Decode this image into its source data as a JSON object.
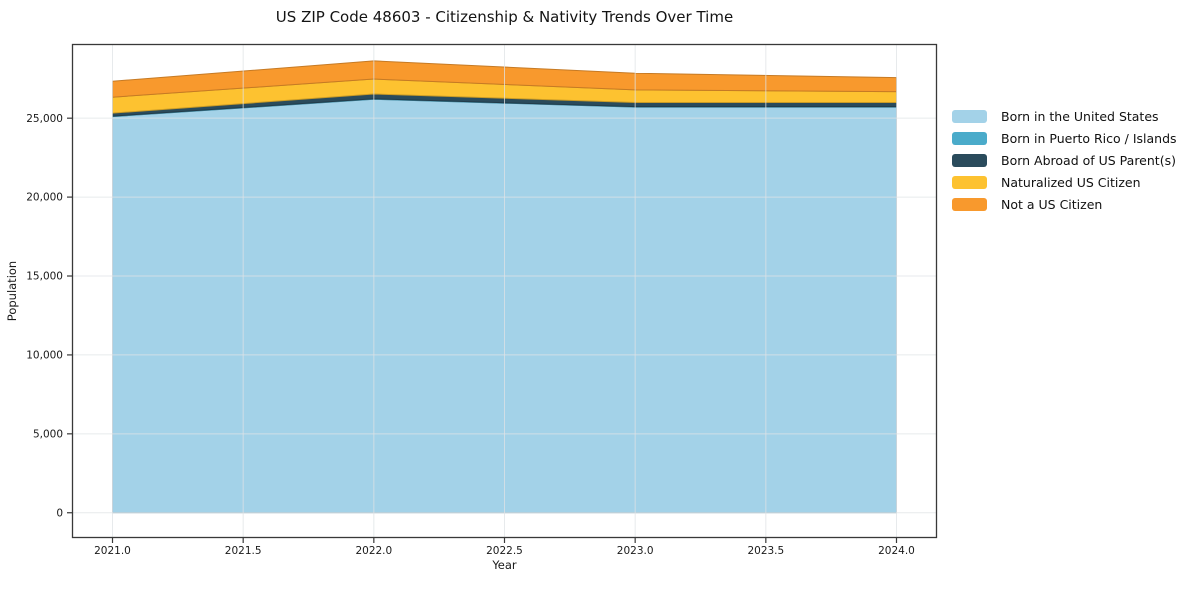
{
  "title": "US ZIP Code 48603 - Citizenship & Nativity Trends Over Time",
  "chart_data": {
    "type": "area",
    "stacked": true,
    "title": "US ZIP Code 48603 - Citizenship & Nativity Trends Over Time",
    "xlabel": "Year",
    "ylabel": "Population",
    "x": [
      2021,
      2022,
      2023,
      2024
    ],
    "xlim": [
      2020.845,
      2024.155
    ],
    "ylim": [
      -1600,
      29700
    ],
    "xticks": [
      2021.0,
      2021.5,
      2022.0,
      2022.5,
      2023.0,
      2023.5,
      2024.0
    ],
    "xticklabels": [
      "2021.0",
      "2021.5",
      "2022.0",
      "2022.5",
      "2023.0",
      "2023.5",
      "2024.0"
    ],
    "yticks": [
      0,
      5000,
      10000,
      15000,
      20000,
      25000
    ],
    "yticklabels": [
      "0",
      "5,000",
      "10,000",
      "15,000",
      "20,000",
      "25,000"
    ],
    "grid": true,
    "legend_position": "center-right-outside",
    "series": [
      {
        "name": "Born in the United States",
        "color": "#a3d2e8",
        "values": [
          25100,
          26200,
          25700,
          25700
        ]
      },
      {
        "name": "Born in Puerto Rico / Islands",
        "color": "#4aabca",
        "values": [
          30,
          30,
          30,
          30
        ]
      },
      {
        "name": "Born Abroad of US Parent(s)",
        "color": "#2a4b5c",
        "values": [
          190,
          300,
          260,
          260
        ]
      },
      {
        "name": "Naturalized US Citizen",
        "color": "#fdc230",
        "values": [
          1010,
          950,
          800,
          690
        ]
      },
      {
        "name": "Not a US Citizen",
        "color": "#f8992d",
        "values": [
          1010,
          1150,
          1060,
          890
        ]
      }
    ],
    "totals": [
      27340,
      28630,
      27850,
      27570
    ]
  },
  "colors": {
    "grid": "#dfe3e6",
    "spine": "#383838",
    "text": "#1a1a1a"
  }
}
